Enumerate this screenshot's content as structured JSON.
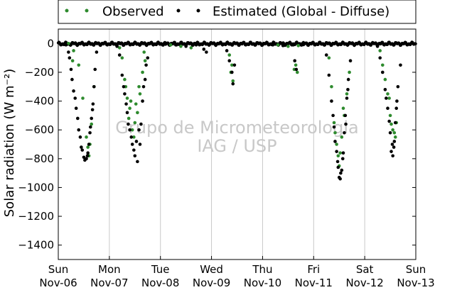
{
  "chart_data": {
    "type": "scatter",
    "ylabel": "Solar radiation (W m⁻²)",
    "ylim": [
      -1500,
      100
    ],
    "yticks": [
      0,
      -200,
      -400,
      -600,
      -800,
      -1000,
      -1200,
      -1400
    ],
    "x_start": "Sun Nov-06",
    "x_end": "Sun Nov-13",
    "x_ticks": [
      {
        "day": "Sun",
        "date": "Nov-06"
      },
      {
        "day": "Mon",
        "date": "Nov-07"
      },
      {
        "day": "Tue",
        "date": "Nov-08"
      },
      {
        "day": "Wed",
        "date": "Nov-09"
      },
      {
        "day": "Thu",
        "date": "Nov-10"
      },
      {
        "day": "Fri",
        "date": "Nov-11"
      },
      {
        "day": "Sat",
        "date": "Nov-12"
      },
      {
        "day": "Sun",
        "date": "Nov-13"
      }
    ],
    "grid": "vertical",
    "legend_position": "top-outside",
    "watermark": [
      "Grupo de Micrometeorologia",
      "IAG / USP"
    ],
    "series": [
      {
        "name": "Observed",
        "color": "#2e8b2e",
        "points": [
          [
            0.2,
            0
          ],
          [
            0.3,
            -50
          ],
          [
            0.4,
            -150
          ],
          [
            0.48,
            -380
          ],
          [
            0.55,
            -650
          ],
          [
            0.6,
            -780
          ],
          [
            0.65,
            -560
          ],
          [
            0.7,
            -300
          ],
          [
            0.28,
            -120
          ],
          [
            0.62,
            -700
          ],
          [
            0.58,
            -720
          ],
          [
            1.2,
            -30
          ],
          [
            1.25,
            -100
          ],
          [
            1.3,
            -250
          ],
          [
            1.35,
            -380
          ],
          [
            1.4,
            -450
          ],
          [
            1.45,
            -600
          ],
          [
            1.5,
            -550
          ],
          [
            1.55,
            -480
          ],
          [
            1.6,
            -350
          ],
          [
            1.65,
            -200
          ],
          [
            1.7,
            -120
          ],
          [
            1.32,
            -300
          ],
          [
            1.38,
            -520
          ],
          [
            1.42,
            -400
          ],
          [
            1.48,
            -650
          ],
          [
            1.52,
            -420
          ],
          [
            1.58,
            -300
          ],
          [
            1.68,
            -60
          ],
          [
            2.2,
            -10
          ],
          [
            2.4,
            -20
          ],
          [
            2.6,
            -30
          ],
          [
            3.35,
            -80
          ],
          [
            3.4,
            -150
          ],
          [
            3.42,
            -260
          ],
          [
            3.38,
            -200
          ],
          [
            4.3,
            -10
          ],
          [
            4.5,
            -20
          ],
          [
            4.7,
            -15
          ],
          [
            4.65,
            -150
          ],
          [
            4.68,
            -200
          ],
          [
            4.62,
            -180
          ],
          [
            5.3,
            -100
          ],
          [
            5.35,
            -300
          ],
          [
            5.4,
            -550
          ],
          [
            5.45,
            -700
          ],
          [
            5.5,
            -850
          ],
          [
            5.55,
            -650
          ],
          [
            5.6,
            -500
          ],
          [
            5.65,
            -350
          ],
          [
            5.7,
            -200
          ],
          [
            5.42,
            -620
          ],
          [
            5.48,
            -780
          ],
          [
            5.52,
            -760
          ],
          [
            5.58,
            -450
          ],
          [
            6.3,
            -50
          ],
          [
            6.35,
            -150
          ],
          [
            6.4,
            -250
          ],
          [
            6.45,
            -350
          ],
          [
            6.5,
            -500
          ],
          [
            6.55,
            -600
          ],
          [
            6.6,
            -650
          ],
          [
            6.62,
            -550
          ],
          [
            6.58,
            -620
          ],
          [
            6.48,
            -380
          ],
          [
            6.52,
            -560
          ]
        ]
      },
      {
        "name": "Estimated (Global - Diffuse)",
        "color": "#000000",
        "points": [
          [
            0.15,
            -10
          ],
          [
            0.2,
            -60
          ],
          [
            0.25,
            -180
          ],
          [
            0.3,
            -330
          ],
          [
            0.35,
            -450
          ],
          [
            0.4,
            -600
          ],
          [
            0.45,
            -720
          ],
          [
            0.5,
            -790
          ],
          [
            0.52,
            -810
          ],
          [
            0.55,
            -800
          ],
          [
            0.58,
            -760
          ],
          [
            0.6,
            -700
          ],
          [
            0.62,
            -620
          ],
          [
            0.65,
            -520
          ],
          [
            0.68,
            -420
          ],
          [
            0.7,
            -300
          ],
          [
            0.72,
            -180
          ],
          [
            0.75,
            -60
          ],
          [
            0.22,
            -100
          ],
          [
            0.27,
            -250
          ],
          [
            0.33,
            -380
          ],
          [
            0.38,
            -520
          ],
          [
            0.43,
            -650
          ],
          [
            0.47,
            -740
          ],
          [
            0.57,
            -780
          ],
          [
            0.63,
            -580
          ],
          [
            0.67,
            -460
          ],
          [
            1.15,
            -20
          ],
          [
            1.2,
            -80
          ],
          [
            1.25,
            -220
          ],
          [
            1.3,
            -350
          ],
          [
            1.35,
            -480
          ],
          [
            1.4,
            -600
          ],
          [
            1.45,
            -700
          ],
          [
            1.5,
            -780
          ],
          [
            1.55,
            -820
          ],
          [
            1.6,
            -700
          ],
          [
            1.62,
            -560
          ],
          [
            1.65,
            -400
          ],
          [
            1.7,
            -250
          ],
          [
            1.75,
            -100
          ],
          [
            1.28,
            -300
          ],
          [
            1.33,
            -420
          ],
          [
            1.37,
            -560
          ],
          [
            1.43,
            -650
          ],
          [
            1.48,
            -740
          ],
          [
            1.53,
            -680
          ],
          [
            1.58,
            -600
          ],
          [
            1.67,
            -300
          ],
          [
            1.72,
            -150
          ],
          [
            2.1,
            -5
          ],
          [
            2.3,
            -10
          ],
          [
            2.5,
            -20
          ],
          [
            2.7,
            -10
          ],
          [
            2.85,
            -40
          ],
          [
            2.9,
            -60
          ],
          [
            3.3,
            -50
          ],
          [
            3.35,
            -120
          ],
          [
            3.4,
            -200
          ],
          [
            3.42,
            -280
          ],
          [
            3.45,
            -150
          ],
          [
            3.8,
            -5
          ],
          [
            4.0,
            -8
          ],
          [
            4.2,
            -10
          ],
          [
            4.4,
            -15
          ],
          [
            4.6,
            -10
          ],
          [
            4.8,
            -8
          ],
          [
            4.63,
            -120
          ],
          [
            4.66,
            -180
          ],
          [
            5.25,
            -80
          ],
          [
            5.3,
            -220
          ],
          [
            5.35,
            -400
          ],
          [
            5.4,
            -580
          ],
          [
            5.45,
            -750
          ],
          [
            5.48,
            -860
          ],
          [
            5.5,
            -930
          ],
          [
            5.52,
            -940
          ],
          [
            5.55,
            -880
          ],
          [
            5.58,
            -760
          ],
          [
            5.6,
            -620
          ],
          [
            5.62,
            -500
          ],
          [
            5.65,
            -380
          ],
          [
            5.68,
            -250
          ],
          [
            5.72,
            -120
          ],
          [
            5.38,
            -500
          ],
          [
            5.42,
            -680
          ],
          [
            5.47,
            -820
          ],
          [
            5.53,
            -900
          ],
          [
            5.57,
            -800
          ],
          [
            5.63,
            -560
          ],
          [
            5.67,
            -320
          ],
          [
            6.25,
            -20
          ],
          [
            6.3,
            -100
          ],
          [
            6.35,
            -200
          ],
          [
            6.4,
            -320
          ],
          [
            6.45,
            -450
          ],
          [
            6.5,
            -620
          ],
          [
            6.52,
            -750
          ],
          [
            6.55,
            -780
          ],
          [
            6.58,
            -680
          ],
          [
            6.6,
            -550
          ],
          [
            6.62,
            -450
          ],
          [
            6.65,
            -300
          ],
          [
            6.7,
            -150
          ],
          [
            6.42,
            -380
          ],
          [
            6.48,
            -540
          ],
          [
            6.54,
            -700
          ],
          [
            6.57,
            -720
          ],
          [
            6.63,
            -400
          ]
        ]
      }
    ]
  }
}
